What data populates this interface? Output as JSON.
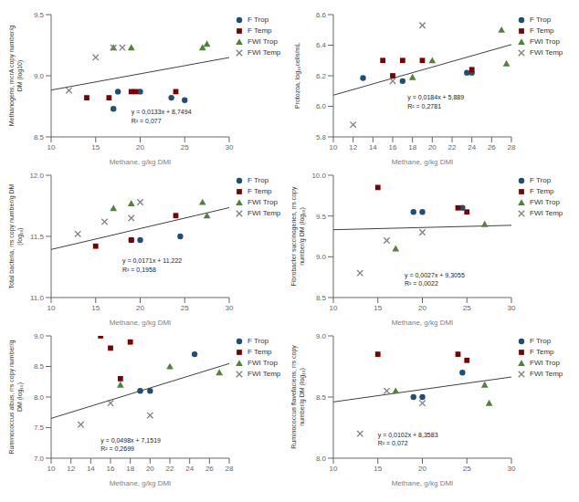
{
  "chart_data": [
    {
      "type": "scatter",
      "xlabel": "Methane, g/kg DMI",
      "ylabel": "Methanogens, mcrA copy number/g\nDM (log10)",
      "xlim": [
        10,
        30
      ],
      "ylim": [
        8.5,
        9.5
      ],
      "xticks": [
        10,
        15,
        20,
        25,
        30
      ],
      "yticks": [
        8.5,
        {
          "value": 9.0,
          "label": "9.0"
        },
        9.5
      ],
      "grid": false,
      "legend": "right",
      "series": [
        {
          "type": "line",
          "color": "#404040",
          "x": [
            10,
            30
          ],
          "y": [
            8.883,
            9.149
          ]
        },
        {
          "name": "F Trop",
          "color": "#1F4E79",
          "marker": "circle",
          "x": [
            17.5,
            20,
            23.5,
            17,
            25
          ],
          "y": [
            8.87,
            8.87,
            8.82,
            8.73,
            8.8
          ]
        },
        {
          "name": "F Temp",
          "color": "#7B0000",
          "marker": "square",
          "x": [
            14,
            16.5,
            19,
            24,
            19.5
          ],
          "y": [
            8.82,
            8.82,
            8.87,
            8.87,
            8.87
          ]
        },
        {
          "name": "FWI Trop",
          "color": "#538135",
          "marker": "triangle",
          "x": [
            17,
            19,
            27,
            27.5
          ],
          "y": [
            9.23,
            9.23,
            9.23,
            9.26
          ]
        },
        {
          "name": "FWI Temp",
          "color": "#808080",
          "marker": "x",
          "x": [
            12,
            15,
            17,
            18
          ],
          "y": [
            8.88,
            9.15,
            9.23,
            9.23
          ]
        }
      ],
      "annotations": [
        {
          "text": [
            "y = 0,0133x + 8,7494",
            "R² = 0,077"
          ],
          "x": 19,
          "y": 8.73
        }
      ]
    },
    {
      "type": "scatter",
      "xlabel": "Methane, g/kg DMI",
      "ylabel": "Protozoa, log₁₀cells/mL",
      "xlim": [
        10,
        28
      ],
      "ylim": [
        5.8,
        6.6
      ],
      "xticks": [
        10,
        12,
        14,
        16,
        18,
        20,
        22,
        24,
        26,
        28
      ],
      "yticks": [
        5.8,
        {
          "value": 6.0,
          "label": "6.0"
        },
        6.2,
        6.4,
        6.6
      ],
      "grid": false,
      "legend": "right",
      "series": [
        {
          "type": "line",
          "color": "#404040",
          "x": [
            10,
            28
          ],
          "y": [
            6.073,
            6.404
          ]
        },
        {
          "name": "F Trop",
          "color": "#1F4E79",
          "marker": "circle",
          "x": [
            13,
            17,
            23.5,
            24
          ],
          "y": [
            6.185,
            6.165,
            6.22,
            6.22
          ]
        },
        {
          "name": "F Temp",
          "color": "#7B0000",
          "marker": "square",
          "x": [
            15,
            16,
            17,
            19,
            24
          ],
          "y": [
            6.3,
            6.2,
            6.3,
            6.3,
            6.24
          ]
        },
        {
          "name": "FWI Trop",
          "color": "#538135",
          "marker": "triangle",
          "x": [
            18,
            20,
            27,
            27.5
          ],
          "y": [
            6.19,
            6.3,
            6.5,
            6.28
          ]
        },
        {
          "name": "FWI Temp",
          "color": "#808080",
          "marker": "x",
          "x": [
            12,
            16,
            19
          ],
          "y": [
            5.88,
            6.165,
            6.53
          ]
        }
      ],
      "annotations": [
        {
          "text": [
            "y = 0,0184x + 5,889",
            "R² = 0,2781"
          ],
          "x": 17.5,
          "y": 6.08
        }
      ]
    },
    {
      "type": "scatter",
      "xlabel": "Methane, g/kg DMI",
      "ylabel": "Total bacteria, rrs copy number/g DM\n(log₁₀)",
      "xlim": [
        10,
        30
      ],
      "ylim": [
        11.0,
        12.0
      ],
      "xticks": [
        10,
        15,
        20,
        25,
        30
      ],
      "yticks": [
        {
          "value": 11.0,
          "label": "11.0"
        },
        11.5,
        {
          "value": 12.0,
          "label": "12.0"
        }
      ],
      "grid": false,
      "legend": "right",
      "series": [
        {
          "type": "line",
          "color": "#404040",
          "x": [
            10,
            30
          ],
          "y": [
            11.393,
            11.735
          ]
        },
        {
          "name": "F Trop",
          "color": "#1F4E79",
          "marker": "circle",
          "x": [
            19,
            20,
            24.5
          ],
          "y": [
            11.47,
            11.47,
            11.5
          ]
        },
        {
          "name": "F Temp",
          "color": "#7B0000",
          "marker": "square",
          "x": [
            15,
            19,
            24
          ],
          "y": [
            11.42,
            11.47,
            11.67
          ]
        },
        {
          "name": "FWI Trop",
          "color": "#538135",
          "marker": "triangle",
          "x": [
            17,
            19,
            27,
            27.5
          ],
          "y": [
            11.73,
            11.77,
            11.78,
            11.67
          ]
        },
        {
          "name": "FWI Temp",
          "color": "#808080",
          "marker": "x",
          "x": [
            13,
            16,
            19,
            20
          ],
          "y": [
            11.52,
            11.62,
            11.65,
            11.78
          ]
        }
      ],
      "annotations": [
        {
          "text": [
            "y = 0,0171x + 11,222",
            "R² = 0,1958"
          ],
          "x": 18,
          "y": 11.33
        }
      ]
    },
    {
      "type": "scatter",
      "xlabel": "Methane, g/kg DMI",
      "ylabel": "Fibrobacter succinogenes, rrs copy\nnumber/g DM (log₁₀)",
      "xlim": [
        10,
        30
      ],
      "ylim": [
        8.5,
        10.0
      ],
      "xticks": [
        10,
        15,
        20,
        25,
        30
      ],
      "yticks": [
        8.5,
        {
          "value": 9.0,
          "label": "9.0"
        },
        9.5,
        {
          "value": 10.0,
          "label": "10.0"
        }
      ],
      "grid": false,
      "legend": "right",
      "series": [
        {
          "type": "line",
          "color": "#404040",
          "x": [
            10,
            30
          ],
          "y": [
            9.332,
            9.386
          ]
        },
        {
          "name": "F Trop",
          "color": "#1F4E79",
          "marker": "circle",
          "x": [
            19,
            20,
            24.5
          ],
          "y": [
            9.55,
            9.55,
            9.6
          ]
        },
        {
          "name": "F Temp",
          "color": "#7B0000",
          "marker": "square",
          "x": [
            15,
            24,
            25
          ],
          "y": [
            9.85,
            9.6,
            9.55
          ]
        },
        {
          "name": "FWI Trop",
          "color": "#538135",
          "marker": "triangle",
          "x": [
            17,
            27
          ],
          "y": [
            9.1,
            9.4
          ]
        },
        {
          "name": "FWI Temp",
          "color": "#808080",
          "marker": "x",
          "x": [
            13,
            16,
            20
          ],
          "y": [
            8.8,
            9.2,
            9.3
          ]
        }
      ],
      "annotations": [
        {
          "text": [
            "y = 0,0027x + 9,3055",
            "R² = 0,0022"
          ],
          "x": 18,
          "y": 8.82
        }
      ]
    },
    {
      "type": "scatter",
      "xlabel": "Methane, g/kg DMI",
      "ylabel": "Ruminococcus albus, rrs copy number/g\nDM (log₁₀)",
      "xlim": [
        10,
        28
      ],
      "ylim": [
        7.0,
        9.0
      ],
      "xticks": [
        10,
        12,
        14,
        16,
        18,
        20,
        22,
        24,
        26,
        28
      ],
      "yticks": [
        {
          "value": 7.0,
          "label": "7.0"
        },
        7.5,
        {
          "value": 8.0,
          "label": "8.0"
        },
        8.5,
        {
          "value": 9.0,
          "label": "9.0"
        }
      ],
      "grid": false,
      "legend": "right",
      "series": [
        {
          "type": "line",
          "color": "#404040",
          "x": [
            10,
            28
          ],
          "y": [
            7.651,
            8.547
          ]
        },
        {
          "name": "F Trop",
          "color": "#1F4E79",
          "marker": "circle",
          "x": [
            19,
            20,
            24.5
          ],
          "y": [
            8.1,
            8.1,
            8.7
          ]
        },
        {
          "name": "F Temp",
          "color": "#7B0000",
          "marker": "square",
          "x": [
            15,
            16,
            17,
            18
          ],
          "y": [
            9.0,
            8.8,
            8.3,
            8.9
          ]
        },
        {
          "name": "FWI Trop",
          "color": "#538135",
          "marker": "triangle",
          "x": [
            17,
            22,
            27
          ],
          "y": [
            8.2,
            8.5,
            8.4
          ]
        },
        {
          "name": "FWI Temp",
          "color": "#808080",
          "marker": "x",
          "x": [
            13,
            16,
            20
          ],
          "y": [
            7.55,
            7.9,
            7.7
          ]
        }
      ],
      "annotations": [
        {
          "text": [
            "y = 0,0498x + 7,1519",
            "R² = 0,2699"
          ],
          "x": 15,
          "y": 7.35
        }
      ]
    },
    {
      "type": "scatter",
      "xlabel": "Methane, g/kg DMI",
      "ylabel": "Ruminococcus flavefaciens, rrs copy\nnumber/g DM (log₁₀)",
      "xlim": [
        10,
        30
      ],
      "ylim": [
        8.0,
        9.0
      ],
      "xticks": [
        10,
        15,
        20,
        25,
        30
      ],
      "yticks": [
        {
          "value": 8.0,
          "label": "8.0"
        },
        8.5,
        {
          "value": 9.0,
          "label": "9.0"
        }
      ],
      "grid": false,
      "legend": "right",
      "series": [
        {
          "type": "line",
          "color": "#404040",
          "x": [
            10,
            30
          ],
          "y": [
            8.46,
            8.664
          ]
        },
        {
          "name": "F Trop",
          "color": "#1F4E79",
          "marker": "circle",
          "x": [
            19,
            20,
            24.5
          ],
          "y": [
            8.5,
            8.5,
            8.7
          ]
        },
        {
          "name": "F Temp",
          "color": "#7B0000",
          "marker": "square",
          "x": [
            15,
            24,
            25
          ],
          "y": [
            8.85,
            8.85,
            8.8
          ]
        },
        {
          "name": "FWI Trop",
          "color": "#538135",
          "marker": "triangle",
          "x": [
            17,
            27,
            27.5
          ],
          "y": [
            8.55,
            8.6,
            8.45
          ]
        },
        {
          "name": "FWI Temp",
          "color": "#808080",
          "marker": "x",
          "x": [
            13,
            16,
            20
          ],
          "y": [
            8.2,
            8.55,
            8.45
          ]
        }
      ],
      "annotations": [
        {
          "text": [
            "y = 0,0102x + 8,3583",
            "R² = 0,072"
          ],
          "x": 15,
          "y": 8.22
        }
      ]
    }
  ]
}
